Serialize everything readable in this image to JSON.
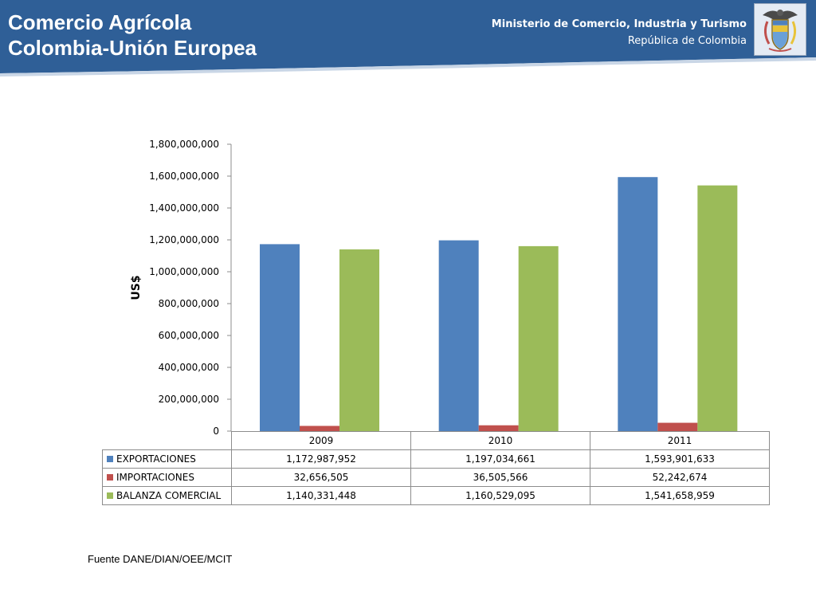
{
  "header": {
    "title_line1": "Comercio Agrícola",
    "title_line2": "Colombia-Unión Europea",
    "ministry": "Ministerio de Comercio, Industria y Turismo",
    "country": "República de Colombia",
    "banner_color": "#2f5f97",
    "emblem": "coat-of-arms-colombia"
  },
  "chart_data": {
    "type": "bar",
    "ylabel": "US$",
    "ylim": [
      0,
      1800000000
    ],
    "yticks": [
      0,
      200000000,
      400000000,
      600000000,
      800000000,
      1000000000,
      1200000000,
      1400000000,
      1600000000,
      1800000000
    ],
    "ytick_labels": [
      "0",
      "200,000,000",
      "400,000,000",
      "600,000,000",
      "800,000,000",
      "1,000,000,000",
      "1,200,000,000",
      "1,400,000,000",
      "1,600,000,000",
      "1,800,000,000"
    ],
    "categories": [
      "2009",
      "2010",
      "2011"
    ],
    "grid": false,
    "legend": "data-table-below",
    "series": [
      {
        "name": "EXPORTACIONES",
        "color": "#4f81bd",
        "values": [
          1172987952,
          1197034661,
          1593901633
        ],
        "labels": [
          "1,172,987,952",
          "1,197,034,661",
          "1,593,901,633"
        ]
      },
      {
        "name": "IMPORTACIONES",
        "color": "#c0504d",
        "values": [
          32656505,
          36505566,
          52242674
        ],
        "labels": [
          "32,656,505",
          "36,505,566",
          "52,242,674"
        ]
      },
      {
        "name": "BALANZA COMERCIAL",
        "color": "#9bbb59",
        "values": [
          1140331448,
          1160529095,
          1541658959
        ],
        "labels": [
          "1,140,331,448",
          "1,160,529,095",
          "1,541,658,959"
        ]
      }
    ]
  },
  "footer": {
    "source": "Fuente DANE/DIAN/OEE/MCIT"
  }
}
